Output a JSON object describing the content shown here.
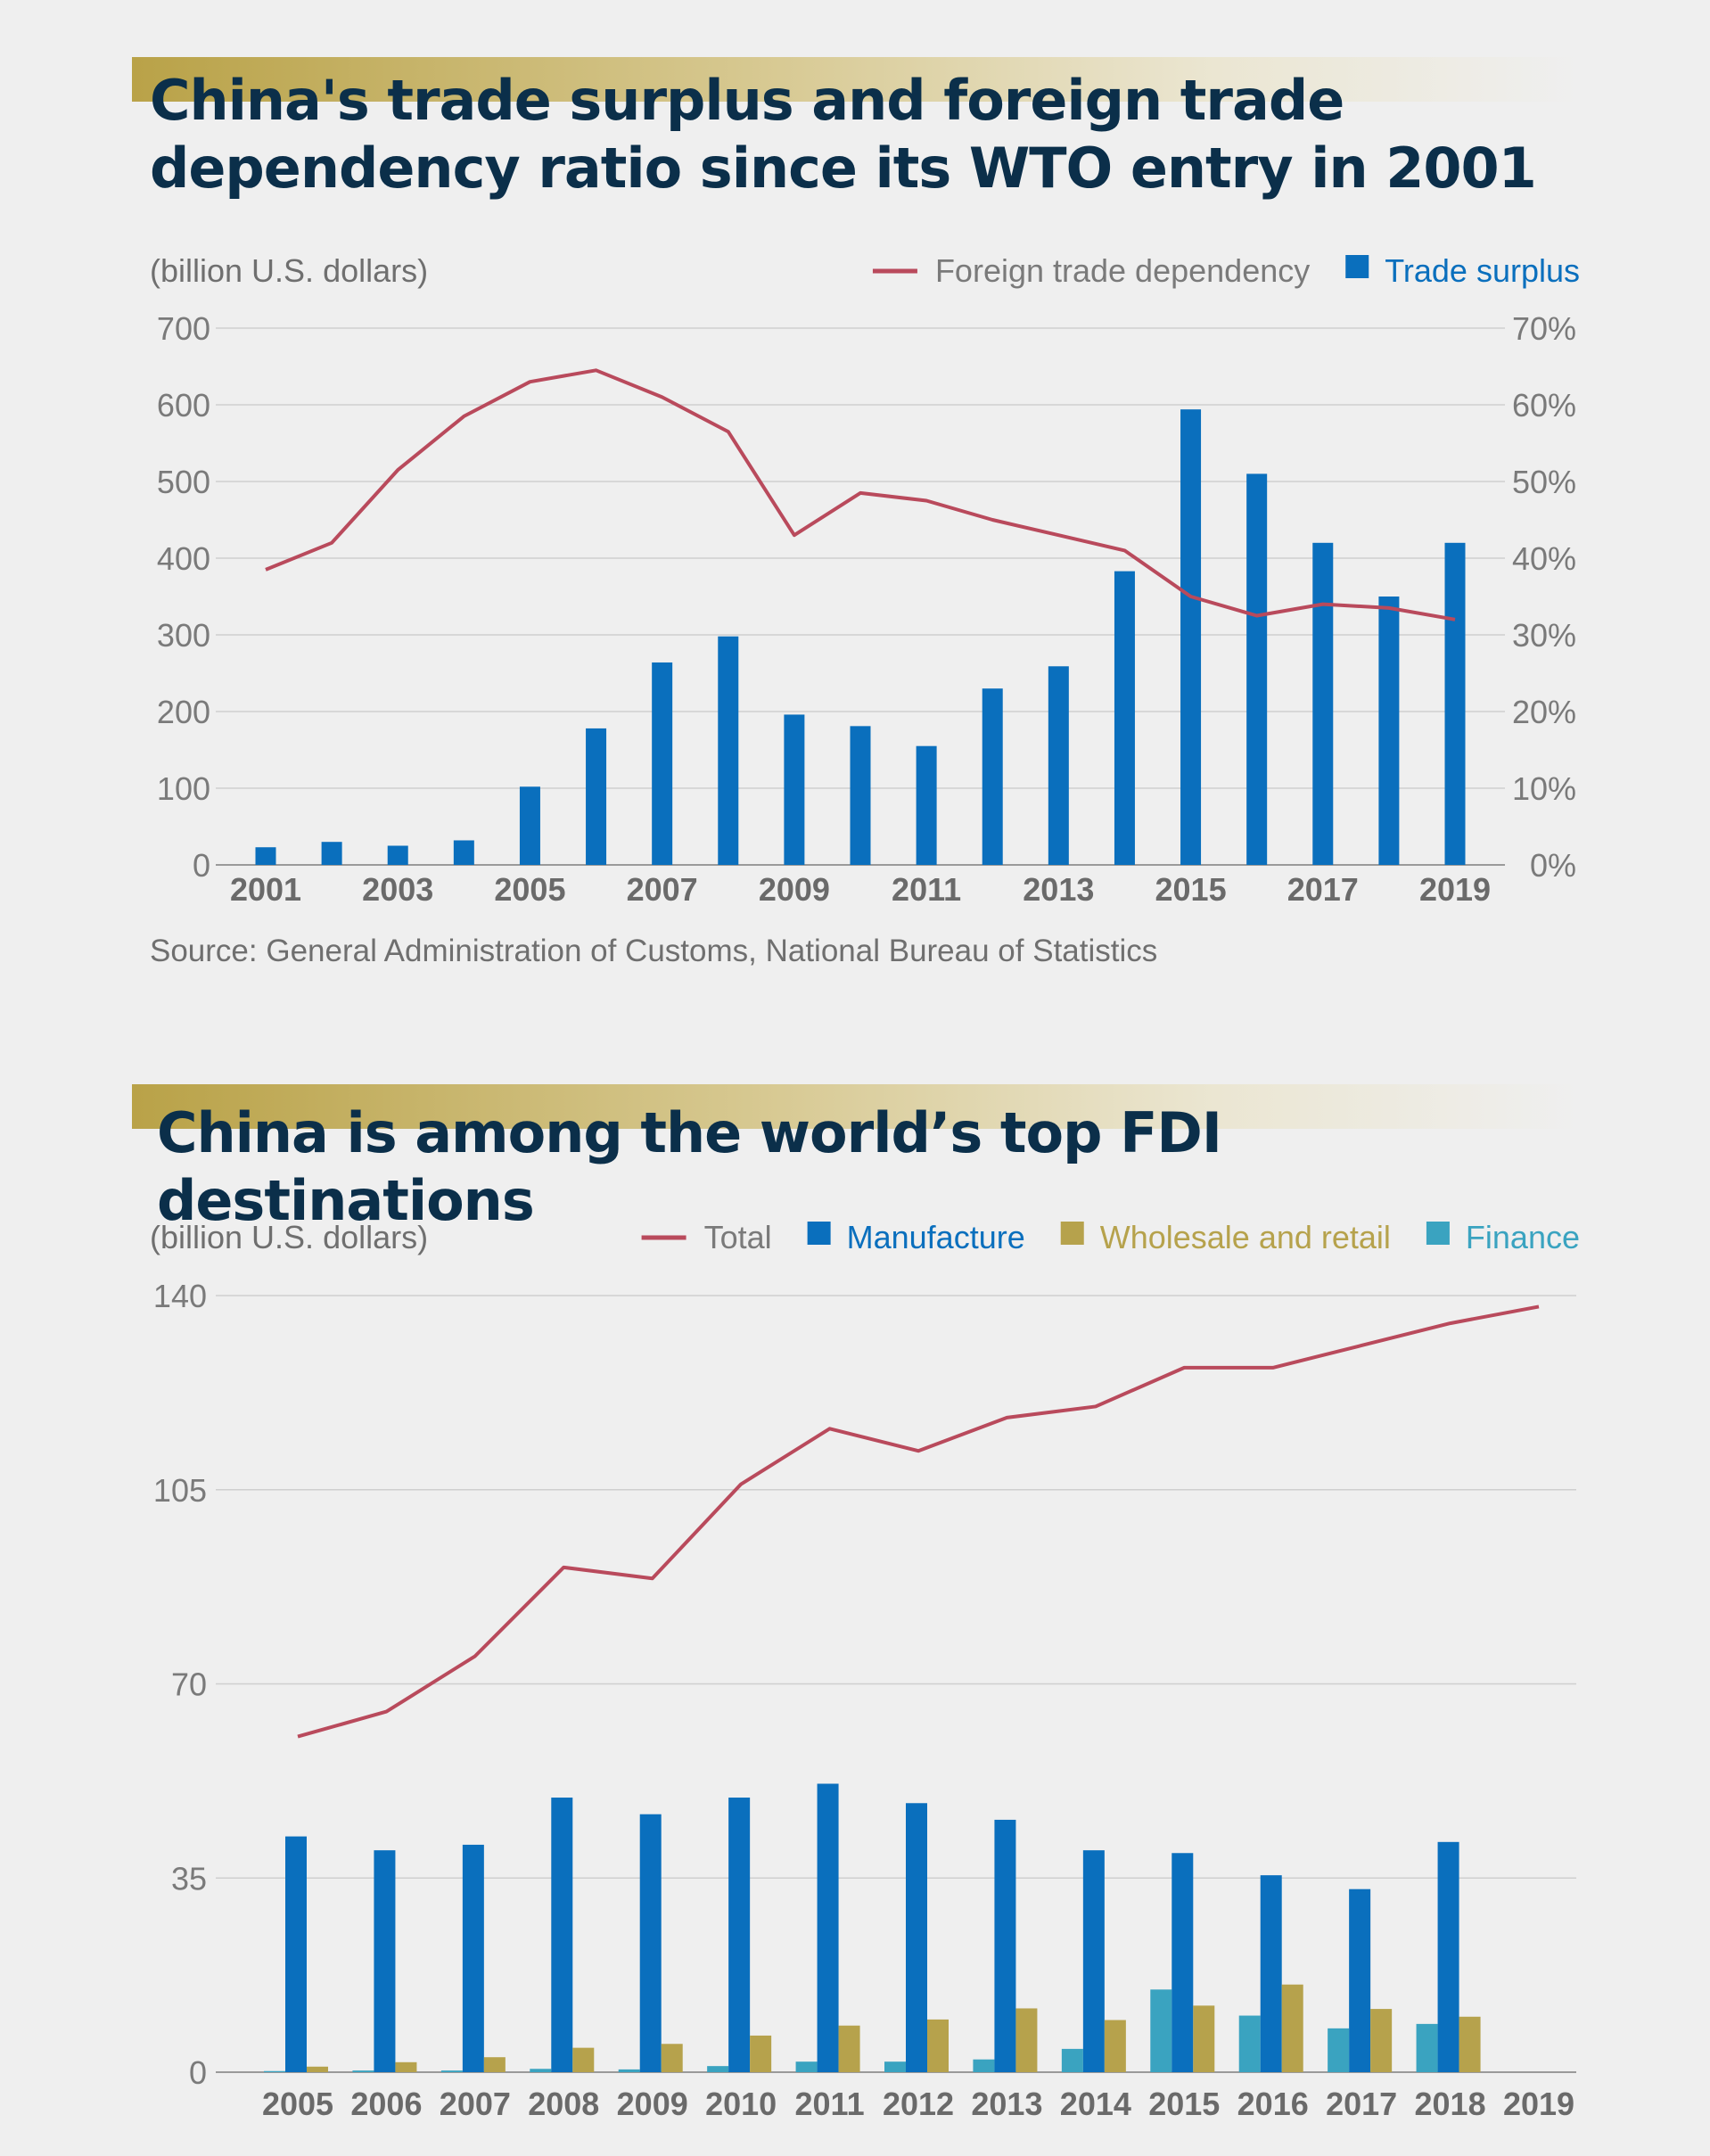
{
  "charts": [
    {
      "title": "China's trade surplus and foreign trade dependency ratio since its WTO entry in 2001",
      "unit_label": "(billion U.S. dollars)",
      "source": "Source: General Administration of Customs, National Bureau of Statistics",
      "legend": [
        {
          "label": "Foreign trade dependency",
          "swatch": "line",
          "color": "#b94a5c",
          "text_color": "#7a7a7a"
        },
        {
          "label": "Trade surplus",
          "swatch": "square",
          "color": "#0a6fbd",
          "text_color": "#0a6fbd"
        }
      ]
    },
    {
      "title": "China is among the world’s top FDI destinations",
      "unit_label": "(billion U.S. dollars)",
      "legend": [
        {
          "label": "Total",
          "swatch": "line",
          "color": "#b94a5c",
          "text_color": "#7a7a7a"
        },
        {
          "label": "Manufacture",
          "swatch": "square",
          "color": "#0a6fbd",
          "text_color": "#0a6fbd"
        },
        {
          "label": "Wholesale and retail",
          "swatch": "square",
          "color": "#b6a24c",
          "text_color": "#b6a24c"
        },
        {
          "label": "Finance",
          "swatch": "square",
          "color": "#3aa3c0",
          "text_color": "#3aa3c0"
        }
      ]
    }
  ],
  "chart_data": [
    {
      "type": "bar+line",
      "title": "China's trade surplus and foreign trade dependency ratio since its WTO entry in 2001",
      "x": [
        2001,
        2002,
        2003,
        2004,
        2005,
        2006,
        2007,
        2008,
        2009,
        2010,
        2011,
        2012,
        2013,
        2014,
        2015,
        2016,
        2017,
        2018,
        2019
      ],
      "x_tick_labels": [
        "2001",
        "2003",
        "2005",
        "2007",
        "2009",
        "2011",
        "2013",
        "2015",
        "2017",
        "2019"
      ],
      "y_left_ticks": [
        "0",
        "100",
        "200",
        "300",
        "400",
        "500",
        "600",
        "700"
      ],
      "y_left_range": [
        0,
        700
      ],
      "y_right_ticks": [
        "0%",
        "10%",
        "20%",
        "30%",
        "40%",
        "50%",
        "60%",
        "70%"
      ],
      "y_right_range": [
        0,
        70
      ],
      "grid": true,
      "legend_position": "top-right",
      "series": [
        {
          "name": "Trade surplus",
          "type": "bar",
          "axis": "left",
          "color": "#0a6fbd",
          "values": [
            23,
            30,
            25,
            32,
            102,
            178,
            264,
            298,
            196,
            181,
            155,
            230,
            259,
            383,
            594,
            510,
            420,
            350,
            420
          ]
        },
        {
          "name": "Foreign trade dependency",
          "type": "line",
          "axis": "right",
          "color": "#b94a5c",
          "values": [
            38.5,
            42.0,
            51.5,
            58.5,
            63.0,
            64.5,
            61.0,
            56.5,
            43.0,
            48.5,
            47.5,
            45.0,
            43.0,
            41.0,
            35.0,
            32.5,
            34.0,
            33.5,
            32.0
          ]
        }
      ]
    },
    {
      "type": "bar+line",
      "title": "China is among the world’s top FDI destinations",
      "categories": [
        "2005",
        "2006",
        "2007",
        "2008",
        "2009",
        "2010",
        "2011",
        "2012",
        "2013",
        "2014",
        "2015",
        "2016",
        "2017",
        "2018",
        "2019"
      ],
      "y_ticks": [
        "0",
        "35",
        "70",
        "105",
        "140"
      ],
      "y_range": [
        0,
        140
      ],
      "grid": true,
      "legend_position": "top-right",
      "series": [
        {
          "name": "Total",
          "type": "line",
          "color": "#b94a5c",
          "values": [
            60.5,
            65,
            75,
            91,
            89,
            106,
            116,
            112,
            118,
            120,
            127,
            127,
            131,
            135,
            138
          ]
        },
        {
          "name": "Manufacture",
          "type": "bar",
          "color": "#0a6fbd",
          "values": [
            42.5,
            40,
            41,
            49.5,
            46.5,
            49.5,
            52,
            48.5,
            45.5,
            40,
            39.5,
            35.5,
            33,
            41.5,
            null
          ]
        },
        {
          "name": "Wholesale and retail",
          "type": "bar",
          "color": "#b6a24c",
          "values": [
            1.0,
            1.8,
            2.7,
            4.4,
            5.1,
            6.6,
            8.4,
            9.5,
            11.5,
            9.4,
            12.0,
            15.8,
            11.4,
            10.0,
            null
          ]
        },
        {
          "name": "Finance",
          "type": "bar",
          "color": "#3aa3c0",
          "values": [
            0.2,
            0.3,
            0.3,
            0.6,
            0.5,
            1.1,
            1.9,
            1.9,
            2.3,
            4.2,
            14.9,
            10.2,
            7.9,
            8.7,
            null
          ]
        }
      ]
    }
  ]
}
